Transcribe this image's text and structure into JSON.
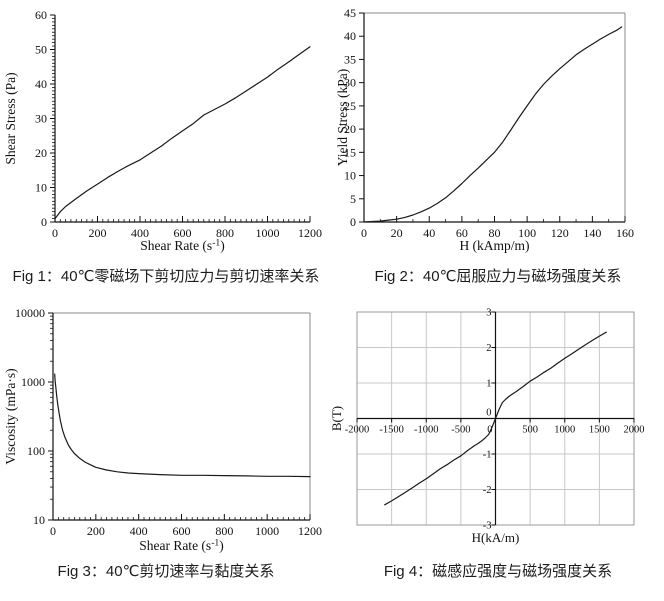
{
  "chart_data": [
    {
      "type": "line",
      "caption": "Fig 1：40℃零磁场下剪切应力与剪切速率关系",
      "xlabel": "Shear Rate (s⁻¹)",
      "ylabel": "Shear Stress (Pa)",
      "axis_style": "origin",
      "frame": false,
      "grid": false,
      "y_scale": "linear",
      "xlim": [
        0,
        1200
      ],
      "ylim": [
        0,
        60
      ],
      "x_ticks": [
        0,
        200,
        400,
        600,
        800,
        1000,
        1200
      ],
      "y_ticks": [
        0,
        10,
        20,
        30,
        40,
        50,
        60
      ],
      "x_minor_step": 25,
      "y_minor_step": 1,
      "line_color": "#1a1a1a",
      "series": [
        {
          "name": "shear-stress-vs-shear-rate",
          "points": [
            [
              0,
              1
            ],
            [
              25,
              3
            ],
            [
              50,
              4.5
            ],
            [
              100,
              6.8
            ],
            [
              150,
              9
            ],
            [
              200,
              11
            ],
            [
              250,
              13
            ],
            [
              300,
              14.8
            ],
            [
              350,
              16.5
            ],
            [
              400,
              18
            ],
            [
              450,
              20
            ],
            [
              500,
              22
            ],
            [
              550,
              24.3
            ],
            [
              600,
              26.4
            ],
            [
              650,
              28.5
            ],
            [
              700,
              31
            ],
            [
              750,
              32.6
            ],
            [
              800,
              34.2
            ],
            [
              850,
              36
            ],
            [
              900,
              38
            ],
            [
              950,
              40
            ],
            [
              1000,
              42
            ],
            [
              1050,
              44.3
            ],
            [
              1100,
              46.4
            ],
            [
              1150,
              48.6
            ],
            [
              1200,
              50.8
            ]
          ]
        }
      ]
    },
    {
      "type": "line",
      "caption": "Fig 2：40℃屈服应力与磁场强度关系",
      "xlabel": "H (kAmp/m)",
      "ylabel": "Yield Stress (kPa)",
      "axis_style": "origin",
      "frame": true,
      "grid": false,
      "y_scale": "linear",
      "xlim": [
        0,
        160
      ],
      "ylim": [
        0,
        45
      ],
      "x_ticks": [
        0,
        20,
        40,
        60,
        80,
        100,
        120,
        140,
        160
      ],
      "y_ticks": [
        0,
        5,
        10,
        15,
        20,
        25,
        30,
        35,
        40,
        45
      ],
      "x_minor_step": 10,
      "y_minor_step": null,
      "line_color": "#1a1a1a",
      "series": [
        {
          "name": "yield-stress-vs-field",
          "points": [
            [
              0,
              0
            ],
            [
              5,
              0.1
            ],
            [
              10,
              0.2
            ],
            [
              15,
              0.4
            ],
            [
              20,
              0.6
            ],
            [
              25,
              1.0
            ],
            [
              30,
              1.5
            ],
            [
              35,
              2.2
            ],
            [
              40,
              3.0
            ],
            [
              45,
              4.0
            ],
            [
              50,
              5.2
            ],
            [
              55,
              6.7
            ],
            [
              60,
              8.3
            ],
            [
              65,
              10.0
            ],
            [
              70,
              11.6
            ],
            [
              75,
              13.3
            ],
            [
              80,
              15.0
            ],
            [
              85,
              17.2
            ],
            [
              90,
              19.8
            ],
            [
              95,
              22.5
            ],
            [
              100,
              25.0
            ],
            [
              105,
              27.5
            ],
            [
              110,
              29.6
            ],
            [
              115,
              31.4
            ],
            [
              120,
              33.0
            ],
            [
              125,
              34.5
            ],
            [
              130,
              36.0
            ],
            [
              135,
              37.2
            ],
            [
              140,
              38.3
            ],
            [
              145,
              39.4
            ],
            [
              150,
              40.4
            ],
            [
              155,
              41.3
            ],
            [
              158,
              42.0
            ]
          ]
        }
      ]
    },
    {
      "type": "line",
      "caption": "Fig 3：40℃剪切速率与黏度关系",
      "xlabel": "Shear Rate (s⁻¹)",
      "ylabel": "Viscosity (mPa·s)",
      "axis_style": "origin",
      "frame": true,
      "grid": false,
      "y_scale": "log",
      "xlim": [
        0,
        1200
      ],
      "ylim": [
        10,
        10000
      ],
      "x_ticks": [
        0,
        200,
        400,
        600,
        800,
        1000,
        1200
      ],
      "y_ticks": [
        10,
        100,
        1000,
        10000
      ],
      "x_minor_step": 25,
      "y_minor": "log",
      "line_color": "#1a1a1a",
      "series": [
        {
          "name": "viscosity-vs-shear-rate",
          "points": [
            [
              8,
              1300
            ],
            [
              10,
              1050
            ],
            [
              13,
              850
            ],
            [
              17,
              650
            ],
            [
              22,
              480
            ],
            [
              28,
              360
            ],
            [
              35,
              270
            ],
            [
              45,
              200
            ],
            [
              55,
              160
            ],
            [
              70,
              125
            ],
            [
              85,
              105
            ],
            [
              100,
              92
            ],
            [
              125,
              78
            ],
            [
              150,
              69
            ],
            [
              175,
              63
            ],
            [
              200,
              58
            ],
            [
              250,
              53
            ],
            [
              300,
              50
            ],
            [
              350,
              48
            ],
            [
              400,
              47
            ],
            [
              500,
              45.5
            ],
            [
              600,
              44.5
            ],
            [
              700,
              44.5
            ],
            [
              800,
              44
            ],
            [
              900,
              43.5
            ],
            [
              1000,
              43
            ],
            [
              1100,
              43
            ],
            [
              1200,
              42.5
            ]
          ]
        }
      ]
    },
    {
      "type": "line",
      "caption": "Fig 4：磁感应强度与磁场强度关系",
      "xlabel": "H(kA/m)",
      "ylabel": "B(T)",
      "axis_style": "excel-centered",
      "frame": true,
      "grid": true,
      "y_scale": "linear",
      "xlim": [
        -2000,
        2000
      ],
      "ylim": [
        -3,
        3
      ],
      "x_ticks": [
        -2000,
        -1500,
        -1000,
        -500,
        0,
        500,
        1000,
        1500,
        2000
      ],
      "y_ticks": [
        -3,
        -2,
        -1,
        0,
        1,
        2,
        3
      ],
      "grid_color": "#c8c8c8",
      "border_color": "#999999",
      "line_color": "#1a1a1a",
      "series": [
        {
          "name": "b-h-magnetization-curve",
          "points": [
            [
              -1600,
              -2.43
            ],
            [
              -1500,
              -2.32
            ],
            [
              -1400,
              -2.2
            ],
            [
              -1300,
              -2.08
            ],
            [
              -1200,
              -1.95
            ],
            [
              -1100,
              -1.82
            ],
            [
              -1000,
              -1.7
            ],
            [
              -900,
              -1.56
            ],
            [
              -800,
              -1.42
            ],
            [
              -700,
              -1.3
            ],
            [
              -600,
              -1.17
            ],
            [
              -500,
              -1.05
            ],
            [
              -400,
              -0.9
            ],
            [
              -300,
              -0.76
            ],
            [
              -250,
              -0.7
            ],
            [
              -200,
              -0.63
            ],
            [
              -150,
              -0.55
            ],
            [
              -100,
              -0.45
            ],
            [
              -50,
              -0.25
            ],
            [
              0,
              0
            ],
            [
              50,
              0.25
            ],
            [
              100,
              0.45
            ],
            [
              150,
              0.55
            ],
            [
              200,
              0.63
            ],
            [
              250,
              0.7
            ],
            [
              300,
              0.76
            ],
            [
              400,
              0.9
            ],
            [
              500,
              1.05
            ],
            [
              600,
              1.17
            ],
            [
              700,
              1.3
            ],
            [
              800,
              1.42
            ],
            [
              900,
              1.56
            ],
            [
              1000,
              1.7
            ],
            [
              1100,
              1.82
            ],
            [
              1200,
              1.95
            ],
            [
              1300,
              2.08
            ],
            [
              1400,
              2.2
            ],
            [
              1500,
              2.32
            ],
            [
              1600,
              2.43
            ]
          ]
        }
      ]
    }
  ]
}
